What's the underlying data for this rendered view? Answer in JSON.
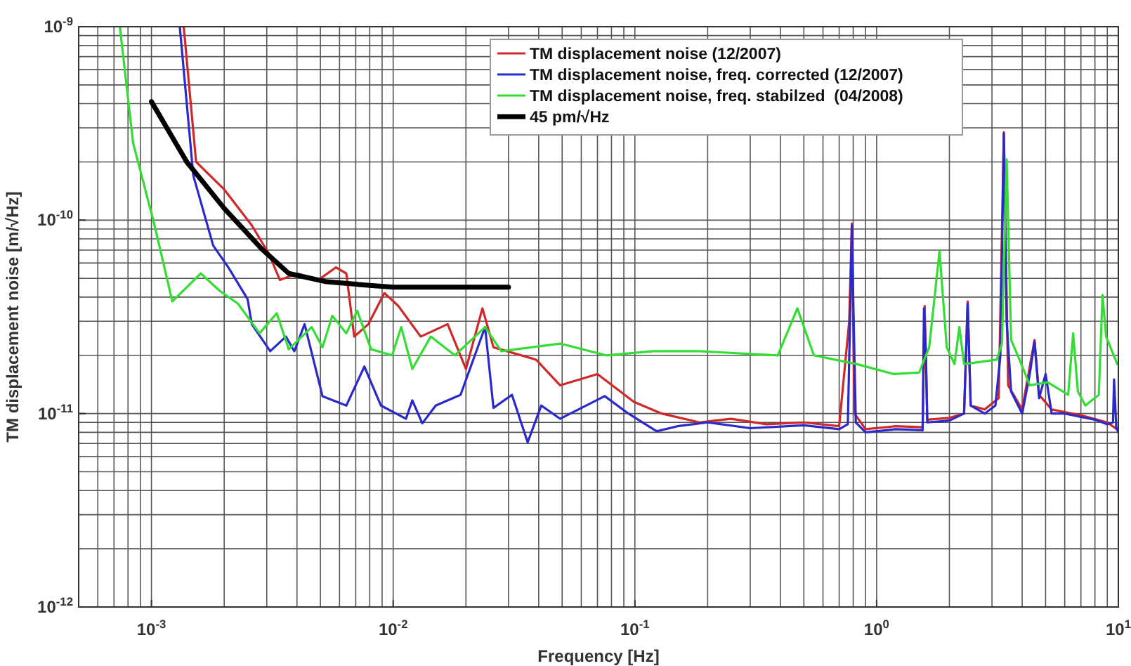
{
  "chart_data": {
    "type": "line",
    "xlabel": "Frequency [Hz]",
    "ylabel": "TM displacement noise [m/√Hz]",
    "log": "xy",
    "grid": true,
    "legend": "top right",
    "line_style": "solid",
    "marker": "none",
    "xlim": [
      0.0005,
      10
    ],
    "ylim": [
      1e-12,
      1e-09
    ],
    "xticks": [
      {
        "value": 0.001,
        "label": "10$^{-3}$"
      },
      {
        "value": 0.01,
        "label": "10$^{-2}$"
      },
      {
        "value": 0.1,
        "label": "10$^{-1}$"
      },
      {
        "value": 1,
        "label": "10$^{0}$"
      },
      {
        "value": 10,
        "label": "10$^{1}$"
      }
    ],
    "yticks": [
      {
        "value": 1e-12,
        "label": "10$^{-12}$"
      },
      {
        "value": 1e-11,
        "label": "10$^{-11}$"
      },
      {
        "value": 1e-10,
        "label": "10$^{-10}$"
      },
      {
        "value": 1e-09,
        "label": "10$^{-9}$"
      }
    ],
    "series": [
      {
        "name": "TM displacement noise (12/2007)",
        "color": "#d02828",
        "x": [
          0.00136,
          0.00153,
          0.002,
          0.0026,
          0.00306,
          0.0034,
          0.004,
          0.0049,
          0.0058,
          0.0064,
          0.0069,
          0.0079,
          0.0092,
          0.0105,
          0.013,
          0.0168,
          0.02,
          0.0234,
          0.026,
          0.039,
          0.049,
          0.07,
          0.099,
          0.129,
          0.185,
          0.25,
          0.35,
          0.5,
          0.7,
          0.77,
          0.79,
          0.81,
          0.9,
          1.2,
          1.55,
          1.58,
          1.62,
          2.0,
          2.3,
          2.38,
          2.45,
          2.8,
          3.2,
          3.36,
          3.5,
          4.0,
          4.5,
          4.7,
          5.3,
          7,
          9,
          10
        ],
        "values": [
          1e-09,
          2e-10,
          1.44e-10,
          9.4e-11,
          6.7e-11,
          4.9e-11,
          5.3e-11,
          4.9e-11,
          5.7e-11,
          5.3e-11,
          2.5e-11,
          2.9e-11,
          4.2e-11,
          3.6e-11,
          2.5e-11,
          2.9e-11,
          1.7e-11,
          3.5e-11,
          2.2e-11,
          1.9e-11,
          1.4e-11,
          1.6e-11,
          1.15e-11,
          1e-11,
          9e-12,
          9.4e-12,
          8.8e-12,
          9e-12,
          8.6e-12,
          3e-11,
          9.6e-11,
          1e-11,
          8.3e-12,
          8.6e-12,
          8.5e-12,
          3.6e-11,
          9.3e-12,
          9.5e-12,
          1e-11,
          3.8e-11,
          1.1e-11,
          1.05e-11,
          1.2e-11,
          2.85e-10,
          1.4e-11,
          1.05e-11,
          2.4e-11,
          1.25e-11,
          1.05e-11,
          9.8e-12,
          9e-12,
          8.2e-12
        ]
      },
      {
        "name": "TM displacement noise, freq. corrected (12/2007)",
        "color": "#2a2acc",
        "x": [
          0.00131,
          0.00149,
          0.0018,
          0.00208,
          0.0025,
          0.0026,
          0.0031,
          0.0036,
          0.0039,
          0.0043,
          0.0051,
          0.0064,
          0.0076,
          0.0089,
          0.0113,
          0.012,
          0.0132,
          0.015,
          0.019,
          0.024,
          0.026,
          0.031,
          0.036,
          0.041,
          0.049,
          0.075,
          0.094,
          0.123,
          0.15,
          0.2,
          0.3,
          0.5,
          0.7,
          0.76,
          0.78,
          0.79,
          0.8,
          0.82,
          0.9,
          1.2,
          1.55,
          1.57,
          1.6,
          1.62,
          2.0,
          2.3,
          2.38,
          2.45,
          2.8,
          3.1,
          3.25,
          3.36,
          3.45,
          3.6,
          4.0,
          4.3,
          4.5,
          4.7,
          5.0,
          5.3,
          6,
          7,
          8,
          9,
          9.5,
          9.6,
          9.8,
          10
        ],
        "values": [
          1e-09,
          1.7e-10,
          7.4e-11,
          5.7e-11,
          3.9e-11,
          2.9e-11,
          2.1e-11,
          2.5e-11,
          2.1e-11,
          2.9e-11,
          1.23e-11,
          1.1e-11,
          1.75e-11,
          1.1e-11,
          9.4e-12,
          1.17e-11,
          8.9e-12,
          1.1e-11,
          1.25e-11,
          2.8e-11,
          1.07e-11,
          1.25e-11,
          7.1e-12,
          1.1e-11,
          9.4e-12,
          1.23e-11,
          1e-11,
          8.1e-12,
          8.6e-12,
          9e-12,
          8.4e-12,
          8.7e-12,
          8.3e-12,
          8.8e-12,
          4e-11,
          9.4e-11,
          4e-11,
          9e-12,
          8e-12,
          8.3e-12,
          8.2e-12,
          3.5e-11,
          2e-11,
          9e-12,
          9.2e-12,
          1e-11,
          3.7e-11,
          1.1e-11,
          1e-11,
          1.1e-11,
          2e-11,
          2.8e-10,
          3e-11,
          1.3e-11,
          1e-11,
          1.6e-11,
          2.35e-11,
          1.2e-11,
          1.6e-11,
          1e-11,
          1e-11,
          9.6e-12,
          9.3e-12,
          8.8e-12,
          9e-12,
          1.5e-11,
          8.5e-12,
          8e-12
        ]
      },
      {
        "name": "TM displacement noise, freq. stabilzed  (04/2008)",
        "color": "#33dd33",
        "x": [
          0.00074,
          0.00084,
          0.00103,
          0.00122,
          0.0016,
          0.00192,
          0.00228,
          0.0028,
          0.0033,
          0.0037,
          0.0046,
          0.0051,
          0.0056,
          0.0064,
          0.0071,
          0.0081,
          0.0099,
          0.0108,
          0.012,
          0.0143,
          0.018,
          0.024,
          0.028,
          0.049,
          0.076,
          0.119,
          0.185,
          0.39,
          0.47,
          0.55,
          0.83,
          1.18,
          1.5,
          1.65,
          1.82,
          1.95,
          2.1,
          2.2,
          2.3,
          3.14,
          3.3,
          3.45,
          3.6,
          3.9,
          4.3,
          5.1,
          6.2,
          6.5,
          6.8,
          7.3,
          8.3,
          8.6,
          8.9,
          9.9
        ],
        "values": [
          1e-09,
          2.5e-10,
          9.4e-11,
          3.8e-11,
          5.3e-11,
          4.3e-11,
          3.7e-11,
          2.6e-11,
          3.3e-11,
          2.15e-11,
          2.8e-11,
          2.2e-11,
          3.2e-11,
          2.6e-11,
          3.4e-11,
          2.15e-11,
          2e-11,
          2.8e-11,
          1.7e-11,
          2.5e-11,
          2e-11,
          2.8e-11,
          2.1e-11,
          2.3e-11,
          2e-11,
          2.1e-11,
          2.1e-11,
          2e-11,
          3.5e-11,
          2e-11,
          1.8e-11,
          1.6e-11,
          1.63e-11,
          2.2e-11,
          6.9e-11,
          2.2e-11,
          1.8e-11,
          2.8e-11,
          1.8e-11,
          1.9e-11,
          2.3e-11,
          2.06e-10,
          2.4e-11,
          1.9e-11,
          1.4e-11,
          1.45e-11,
          1.25e-11,
          2.6e-11,
          1.3e-11,
          1.1e-11,
          1.25e-11,
          4.1e-11,
          2.5e-11,
          1.8e-11
        ]
      },
      {
        "name": "45 pm/√Hz",
        "color": "#000000",
        "x": [
          0.001,
          0.0014,
          0.002,
          0.00286,
          0.0037,
          0.0053,
          0.008,
          0.01,
          0.03
        ],
        "values": [
          4.1e-10,
          2e-10,
          1.15e-10,
          7.1e-11,
          5.3e-11,
          4.8e-11,
          4.6e-11,
          4.5e-11,
          4.5e-11
        ]
      }
    ]
  }
}
